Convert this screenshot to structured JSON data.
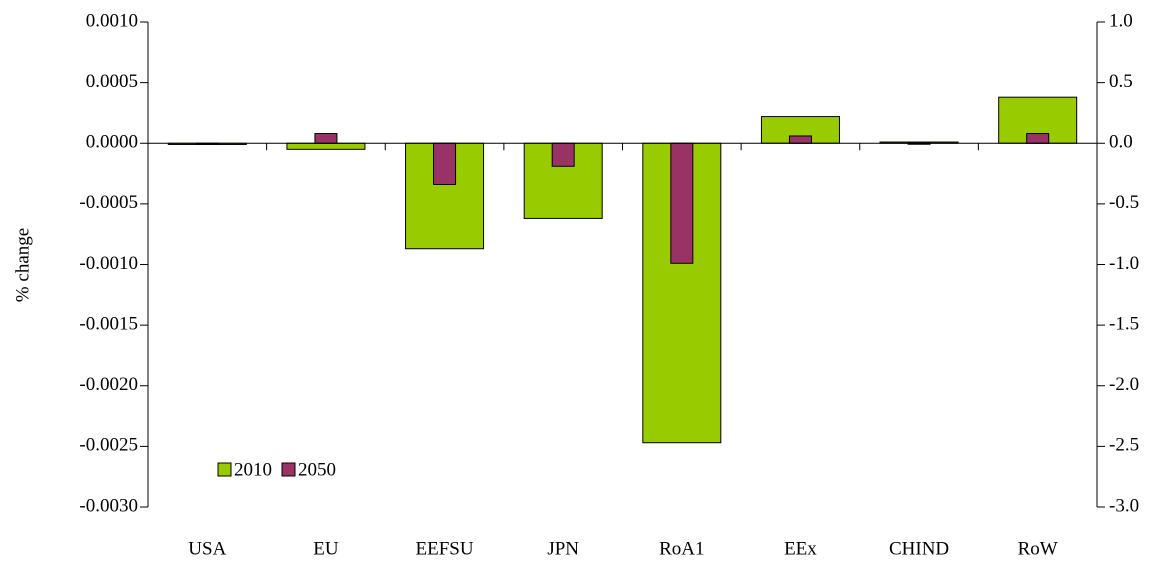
{
  "chart_data": {
    "type": "bar",
    "ylabel": "% change",
    "categories": [
      "USA",
      "EU",
      "EEFSU",
      "JPN",
      "RoA1",
      "EEx",
      "CHIND",
      "RoW"
    ],
    "series": [
      {
        "name": "2010",
        "color": "#99cc00",
        "values": [
          -1e-05,
          -5e-05,
          -0.00087,
          -0.00062,
          -0.00247,
          0.00022,
          1e-05,
          0.00038
        ]
      },
      {
        "name": "2050",
        "color": "#993366",
        "axis": "y2",
        "values": [
          0.0,
          0.08,
          -0.34,
          -0.19,
          -0.99,
          0.06,
          0.0,
          0.08
        ]
      }
    ],
    "ylim": [
      -0.003,
      0.001
    ],
    "yticks": [
      {
        "value": 0.001,
        "label": "0.0010"
      },
      {
        "value": 0.0005,
        "label": "0.0005"
      },
      {
        "value": 0,
        "label": "0.0000"
      },
      {
        "value": -0.0005,
        "label": "-0.0005"
      },
      {
        "value": -0.001,
        "label": "-0.0010"
      },
      {
        "value": -0.0015,
        "label": "-0.0015"
      },
      {
        "value": -0.002,
        "label": "-0.0020"
      },
      {
        "value": -0.0025,
        "label": "-0.0025"
      },
      {
        "value": -0.003,
        "label": "-0.0030"
      }
    ],
    "y2lim": [
      -3,
      1
    ],
    "y2ticks": [
      {
        "value": 1,
        "label": "1.0"
      },
      0.5,
      {
        "value": 0,
        "label": "0.0"
      },
      -0.5,
      {
        "value": -1,
        "label": "-1.0"
      },
      -1.5,
      {
        "value": -2,
        "label": "-2.0"
      },
      -2.5,
      {
        "value": -3,
        "label": "-3.0"
      }
    ],
    "legend": "lower left"
  }
}
